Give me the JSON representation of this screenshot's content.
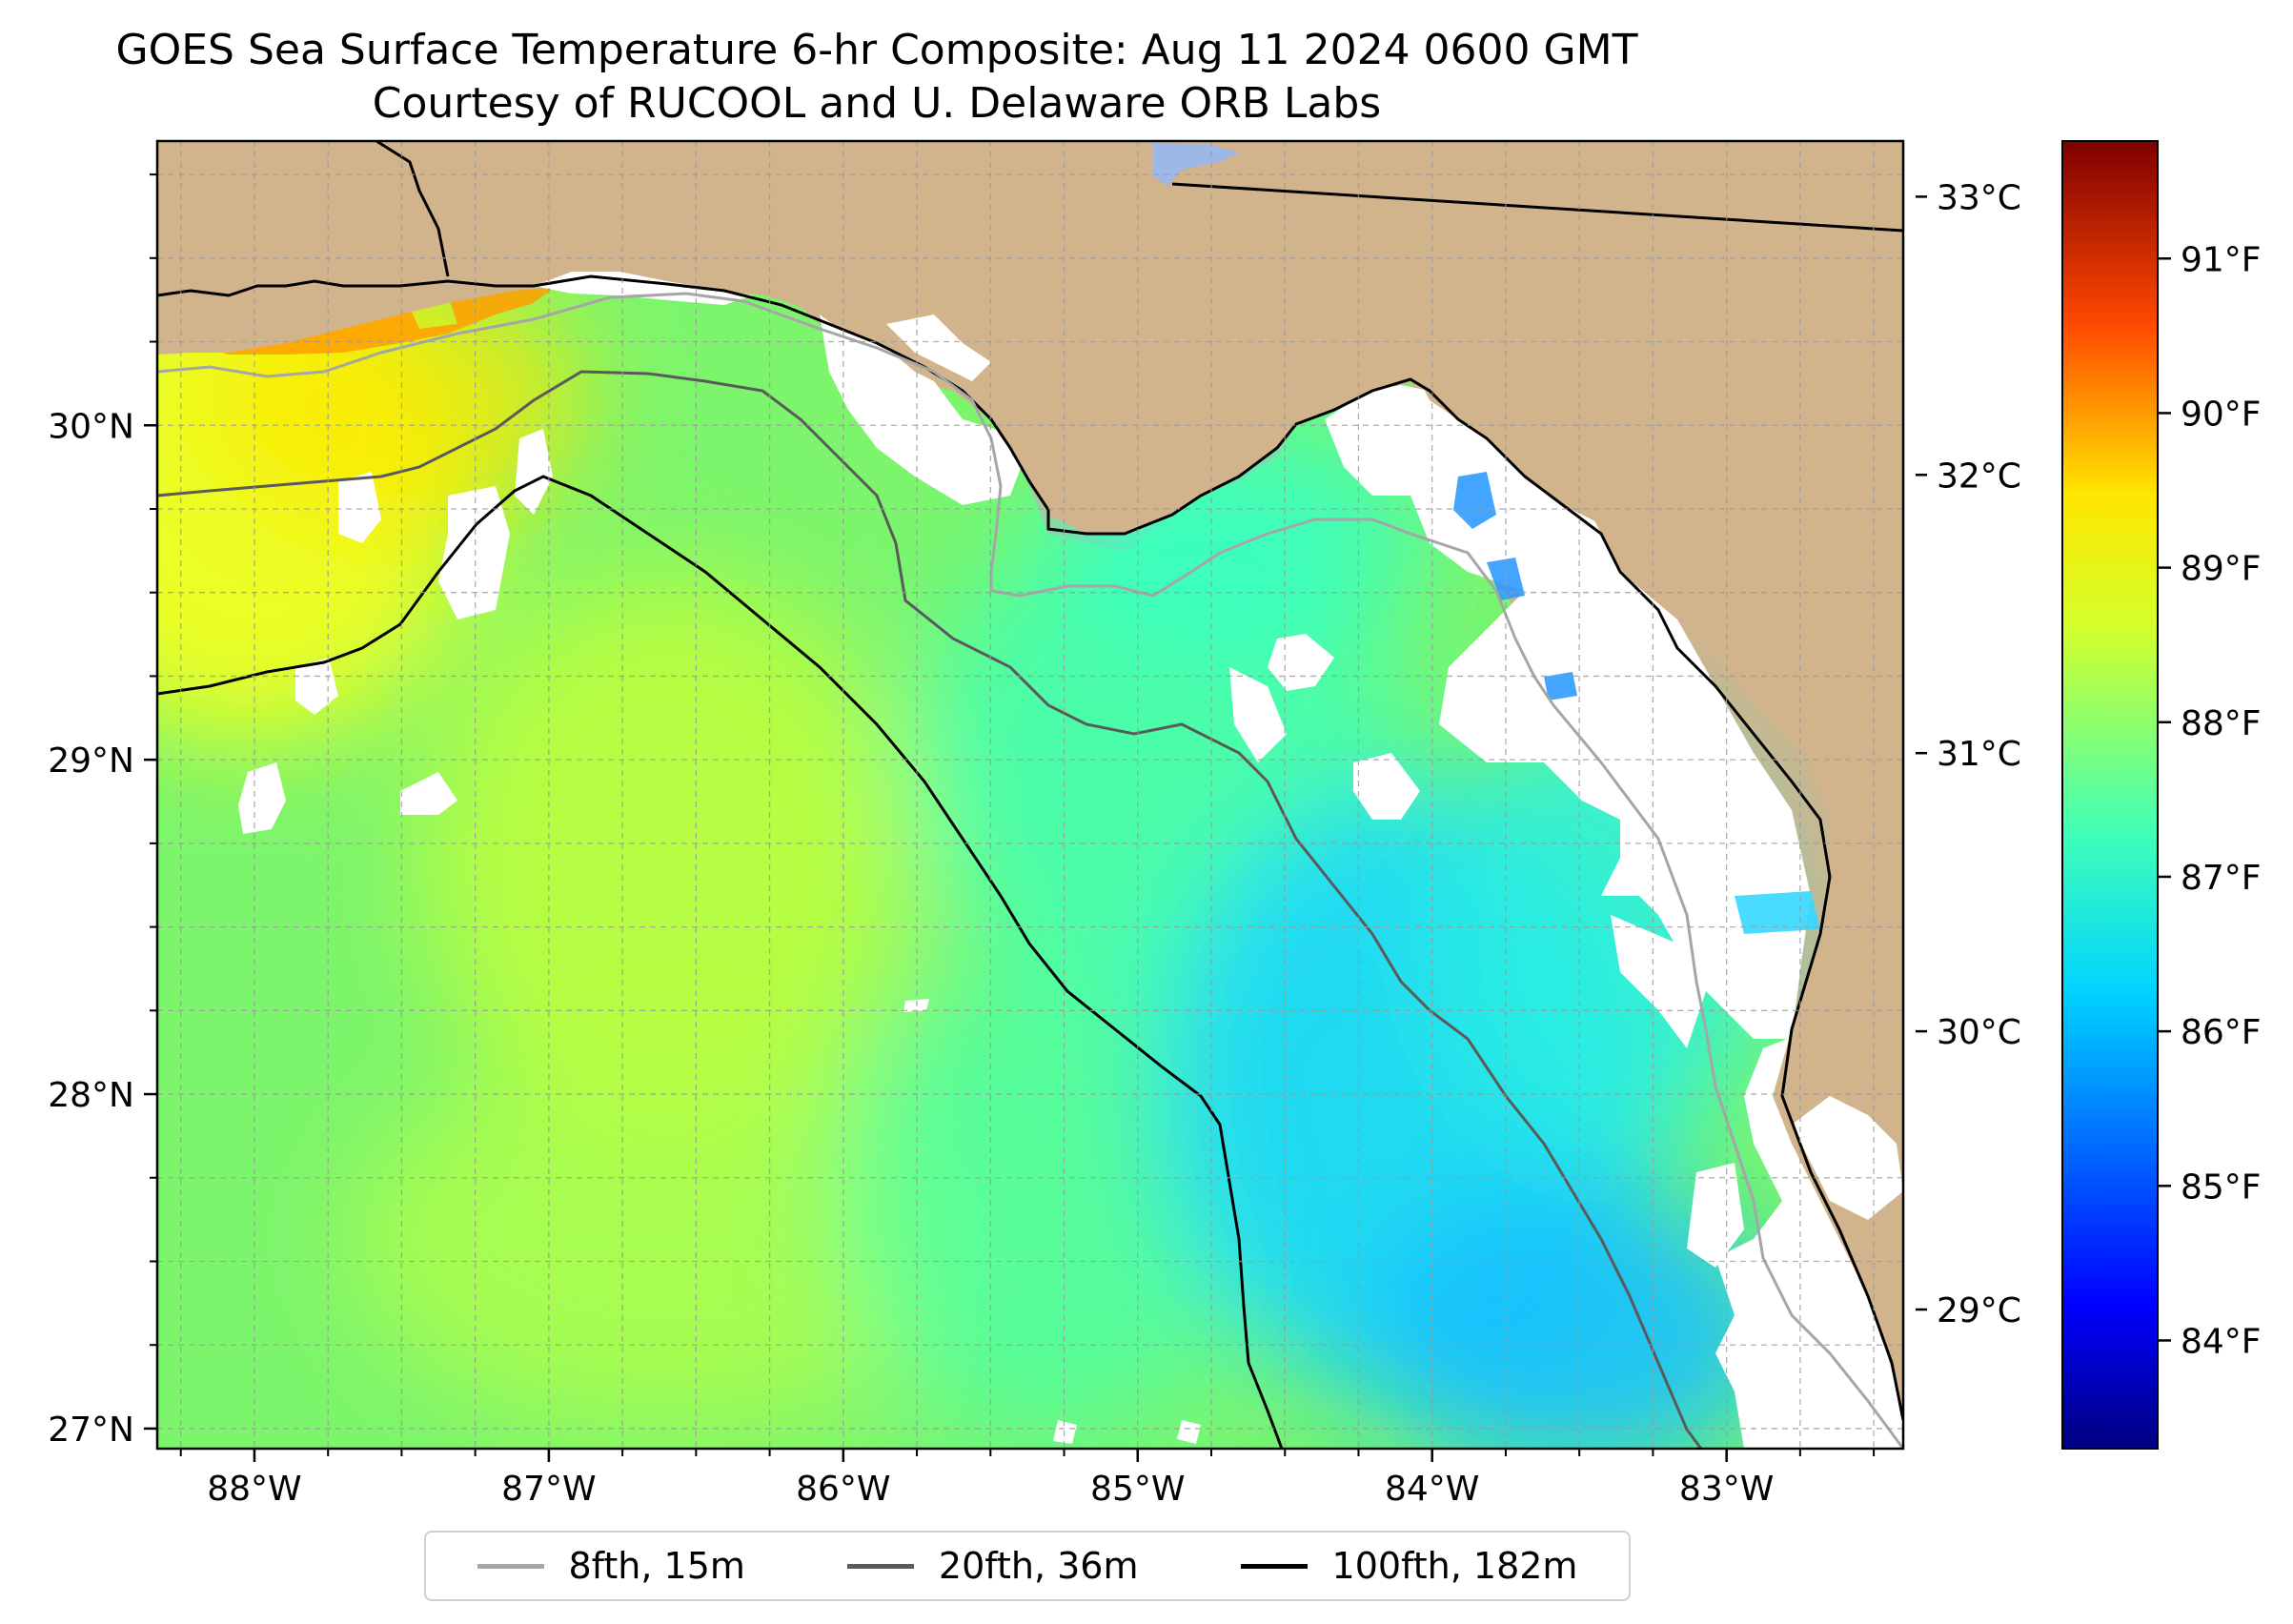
{
  "title": {
    "line1": "GOES Sea Surface Temperature 6-hr Composite: Aug 11 2024 0600 GMT",
    "line2": "Courtesy of RUCOOL and U. Delaware ORB Labs"
  },
  "map": {
    "lon_range": [
      -88.33,
      -82.4
    ],
    "lat_range": [
      26.94,
      30.85
    ],
    "lon_ticks": [
      {
        "value": -88,
        "label": "88°W"
      },
      {
        "value": -87,
        "label": "87°W"
      },
      {
        "value": -86,
        "label": "86°W"
      },
      {
        "value": -85,
        "label": "85°W"
      },
      {
        "value": -84,
        "label": "84°W"
      },
      {
        "value": -83,
        "label": "83°W"
      }
    ],
    "lat_ticks": [
      {
        "value": 30,
        "label": "30°N"
      },
      {
        "value": 29,
        "label": "29°N"
      },
      {
        "value": 28,
        "label": "28°N"
      },
      {
        "value": 27,
        "label": "27°N"
      }
    ],
    "gridlines": true,
    "colors": {
      "land": "#d2b48c",
      "cloud_mask": "#ffffff",
      "lake": "#9db8e6"
    }
  },
  "colorbar": {
    "celsius_range": [
      28.5,
      33.2
    ],
    "fahrenheit_range": [
      83.3,
      91.76
    ],
    "celsius_ticks": [
      {
        "value": 33,
        "label": "33°C"
      },
      {
        "value": 32,
        "label": "32°C"
      },
      {
        "value": 31,
        "label": "31°C"
      },
      {
        "value": 30,
        "label": "30°C"
      },
      {
        "value": 29,
        "label": "29°C"
      }
    ],
    "fahrenheit_ticks": [
      {
        "value": 91,
        "label": "91°F"
      },
      {
        "value": 90,
        "label": "90°F"
      },
      {
        "value": 89,
        "label": "89°F"
      },
      {
        "value": 88,
        "label": "88°F"
      },
      {
        "value": 87,
        "label": "87°F"
      },
      {
        "value": 86,
        "label": "86°F"
      },
      {
        "value": 85,
        "label": "85°F"
      },
      {
        "value": 84,
        "label": "84°F"
      }
    ],
    "colormap": [
      "#00007f",
      "#0000ff",
      "#007fff",
      "#00ffff",
      "#7fff7f",
      "#ffff00",
      "#ff7f00",
      "#ff0000",
      "#7f0000"
    ]
  },
  "legend": {
    "items": [
      {
        "label": "8fth, 15m",
        "color": "#a6a6a6"
      },
      {
        "label": "20fth, 36m",
        "color": "#5a5a5a"
      },
      {
        "label": "100fth, 182m",
        "color": "#000000"
      }
    ]
  }
}
